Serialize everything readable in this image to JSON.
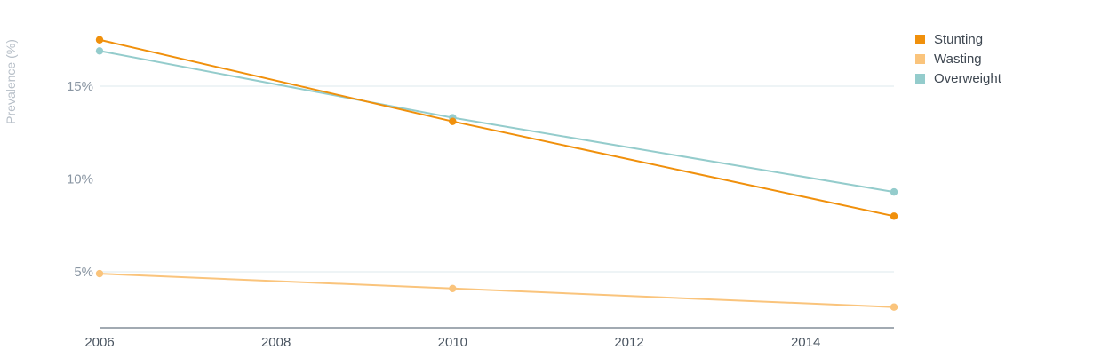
{
  "chart_data": {
    "type": "line",
    "ylabel": "Prevalence (%)",
    "xlabel": "",
    "x": [
      2006,
      2010,
      2015
    ],
    "xlim": [
      2006,
      2015
    ],
    "ylim": [
      2,
      19
    ],
    "xticks": [
      "2006",
      "2008",
      "2010",
      "2012",
      "2014"
    ],
    "yticks": [
      "5%",
      "10%",
      "15%"
    ],
    "grid": "horizontal",
    "legend_position": "top-right",
    "series": [
      {
        "name": "Stunting",
        "color": "#f0900c",
        "values": [
          17.5,
          13.1,
          8.0
        ]
      },
      {
        "name": "Wasting",
        "color": "#fac47c",
        "values": [
          4.9,
          4.1,
          3.1
        ]
      },
      {
        "name": "Overweight",
        "color": "#94cccc",
        "values": [
          16.9,
          13.3,
          9.3
        ]
      }
    ]
  }
}
